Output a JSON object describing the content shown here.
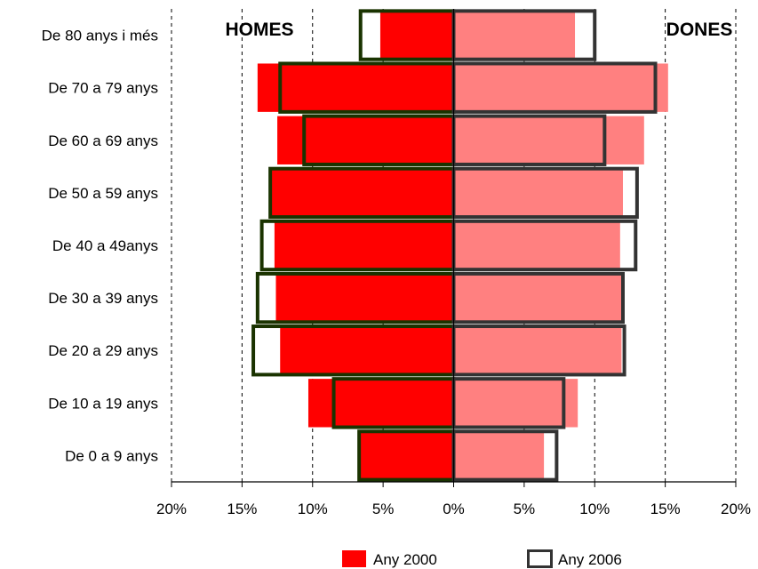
{
  "chart_data": {
    "type": "bar",
    "orientation": "horizontal-population-pyramid",
    "side_labels": {
      "left": "HOMES",
      "right": "DONES"
    },
    "categories": [
      "De 80 anys i més",
      "De 70 a 79 anys",
      "De 60 a 69 anys",
      "De 50 a 59 anys",
      "De 40 a 49anys",
      "De 30 a 39 anys",
      "De 20 a 29 anys",
      "De 10 a 19 anys",
      "De 0 a 9 anys"
    ],
    "series": [
      {
        "name": "Any 2000",
        "style": "filled",
        "men": [
          5.2,
          13.9,
          12.5,
          13.0,
          12.7,
          12.6,
          12.3,
          10.3,
          6.6
        ],
        "women": [
          8.6,
          15.2,
          13.5,
          12.0,
          11.8,
          11.9,
          11.9,
          8.8,
          6.4
        ]
      },
      {
        "name": "Any 2006",
        "style": "outline",
        "men": [
          6.6,
          12.3,
          10.6,
          13.0,
          13.6,
          13.9,
          14.2,
          8.5,
          6.7
        ],
        "women": [
          10.0,
          14.3,
          10.7,
          13.0,
          12.9,
          12.0,
          12.1,
          7.8,
          7.3
        ]
      }
    ],
    "x_ticks": [
      "20%",
      "15%",
      "10%",
      "5%",
      "0%",
      "5%",
      "10%",
      "15%",
      "20%"
    ],
    "xlim": [
      -20,
      20
    ],
    "grid": "vertical dashed",
    "legend_position": "bottom",
    "colors": {
      "men_2000": "#ff0000",
      "women_2000": "#ff8080",
      "men_2006_outline": "#1a3300",
      "women_2006_outline": "#333333"
    }
  }
}
